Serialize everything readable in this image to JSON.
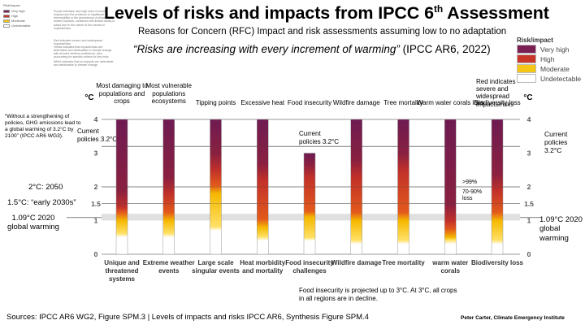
{
  "title": "Levels of risks and impacts from IPCC 6",
  "title_sup": "th",
  "title_end": " Assessment",
  "subtitle": "Reasons for Concern (RFC) Impact and risk assessments assuming low to no adaptation",
  "quote_text": "“Risks are increasing with every increment of warming”",
  "quote_source": "(IPCC AR6, 2022)",
  "left_legend": {
    "title": "Risk/impact",
    "items": [
      "Very high",
      "High",
      "Moderate",
      "Undetectable"
    ],
    "descriptions": [
      "Purple indicates very high risks of severe impacts and the presence of significant irreversibility or the persistence of climate-related hazards, combined with limited ability to adapt due to the nature of the hazard or impacts/risks.",
      "Red indicates severe and widespread impacts/risks.",
      "Yellow indicates that impacts/risks are detectable and attributable to climate change with at least medium confidence, also accounting for specific criteria for key risks.",
      "White indicates that no impacts are detectable and attributable to climate change."
    ]
  },
  "right_legend": {
    "title": "Risk/impact",
    "items": [
      "Very high",
      "High",
      "Moderate",
      "Undetectable"
    ],
    "colors": [
      "#7b2055",
      "#c8362a",
      "#f5c518",
      "#ffffff"
    ],
    "note": "Red indicates severe and widespread impacts/risks"
  },
  "annotations": {
    "without_strengthening": "“Without a strengthening of policies, GHG emissions lead to a global warming of 3.2°C by 2100” (IPCC AR6 WG3).",
    "current_policies_left": "Current policies 3.2°C",
    "current_policies_mid": "Current policies 3.2°C",
    "current_policies_right": "Current policies 3.2°C",
    "two_c": "2°C: 2050",
    "one_five_c": "1.5°C: “early 2030s”",
    "current_left": "1.09°C 2020 global warming",
    "current_right": "1.09°C 2020 global warming",
    "coral_99": ">99%",
    "coral_7090": "70-90% loss",
    "food_note": "Food insecurity is projected up to 3°C. At 3°C, all crops in all regions are in decline."
  },
  "sources": "Sources: IPCC AR6 WG2, Figure SPM.3 | Levels of impacts and risks     IPCC AR6, Synthesis Figure SPM.4",
  "credit": "Peter Carter,  Climate Emergency Institute",
  "chart_data": {
    "type": "table",
    "title": "Levels of risks and impacts from IPCC 6th Assessment",
    "ylabel": "°C",
    "ylim": [
      0,
      4
    ],
    "yticks": [
      "0",
      "1",
      "1.5",
      "2",
      "3",
      "4"
    ],
    "reference_lines": [
      {
        "name": "Current policies",
        "value": 3.2
      },
      {
        "name": "2°C: 2050",
        "value": 2.0
      },
      {
        "name": "1.5°C: early 2030s",
        "value": 1.5
      },
      {
        "name": "2020 global warming",
        "value": 1.09
      }
    ],
    "categories": [
      "Most damaging to populations and crops",
      "Most vulnerable populations ecosystems",
      "Tipping points",
      "Excessive heat",
      "Food insecurity",
      "Wildfire damage",
      "Tree mortality",
      "Warm water corals loss",
      "Biodiversity loss"
    ],
    "bottom_labels": [
      "Unique and threatened systems",
      "Extreme weather events",
      "Large scale singular events",
      "Heat morbidity and mortality",
      "Food insecurity challenges",
      "Wildfire damage",
      "Tree mortality",
      "warm water corals",
      "Biodiversity loss"
    ],
    "series": [
      {
        "name": "Unique and threatened systems",
        "top": 4.0,
        "undetectable_to": 0.5,
        "moderate_to": 1.0,
        "high_to": 1.4
      },
      {
        "name": "Extreme weather events",
        "top": 4.0,
        "undetectable_to": 0.5,
        "moderate_to": 1.0,
        "high_to": 1.8
      },
      {
        "name": "Large scale singular events",
        "top": 4.0,
        "undetectable_to": 0.7,
        "moderate_to": 1.8,
        "high_to": 2.5
      },
      {
        "name": "Heat morbidity and mortality",
        "top": 4.0,
        "undetectable_to": 0.4,
        "moderate_to": 0.8,
        "high_to": 2.2
      },
      {
        "name": "Food insecurity challenges",
        "top": 3.0,
        "undetectable_to": 0.4,
        "moderate_to": 1.1,
        "high_to": 2.3
      },
      {
        "name": "Wildfire damage",
        "top": 4.0,
        "undetectable_to": 0.3,
        "moderate_to": 1.0,
        "high_to": 2.3
      },
      {
        "name": "Tree mortality",
        "top": 4.0,
        "undetectable_to": 0.3,
        "moderate_to": 1.0,
        "high_to": 2.5
      },
      {
        "name": "warm water corals",
        "top": 4.0,
        "undetectable_to": 0.3,
        "moderate_to": 0.5,
        "high_to": 1.0
      },
      {
        "name": "Biodiversity loss",
        "top": 4.0,
        "undetectable_to": 0.3,
        "moderate_to": 1.0,
        "high_to": 1.9
      }
    ]
  }
}
